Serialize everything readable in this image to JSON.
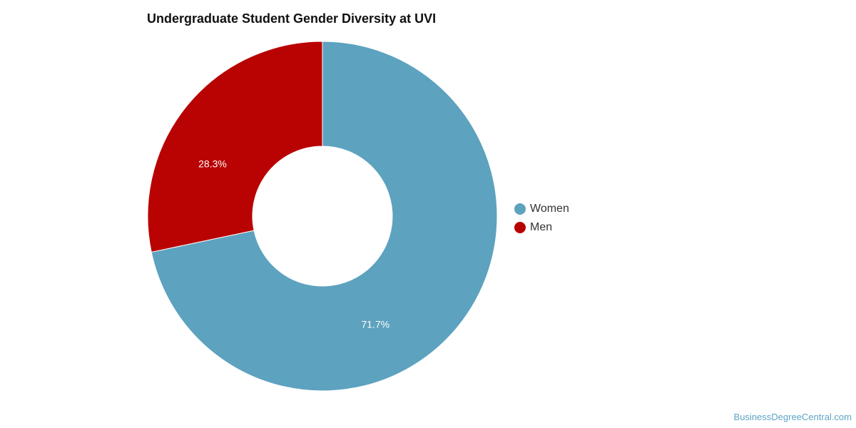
{
  "chart_data": {
    "type": "pie",
    "title": "Undergraduate Student Gender Diversity at UVI",
    "categories": [
      "Women",
      "Men"
    ],
    "values": [
      71.7,
      28.3
    ],
    "value_labels": [
      "71.7%",
      "28.3%"
    ],
    "colors": [
      "#5da2be",
      "#b90202"
    ],
    "donut": true,
    "legend_placement": "right"
  },
  "watermark": "BusinessDegreeCentral.com"
}
